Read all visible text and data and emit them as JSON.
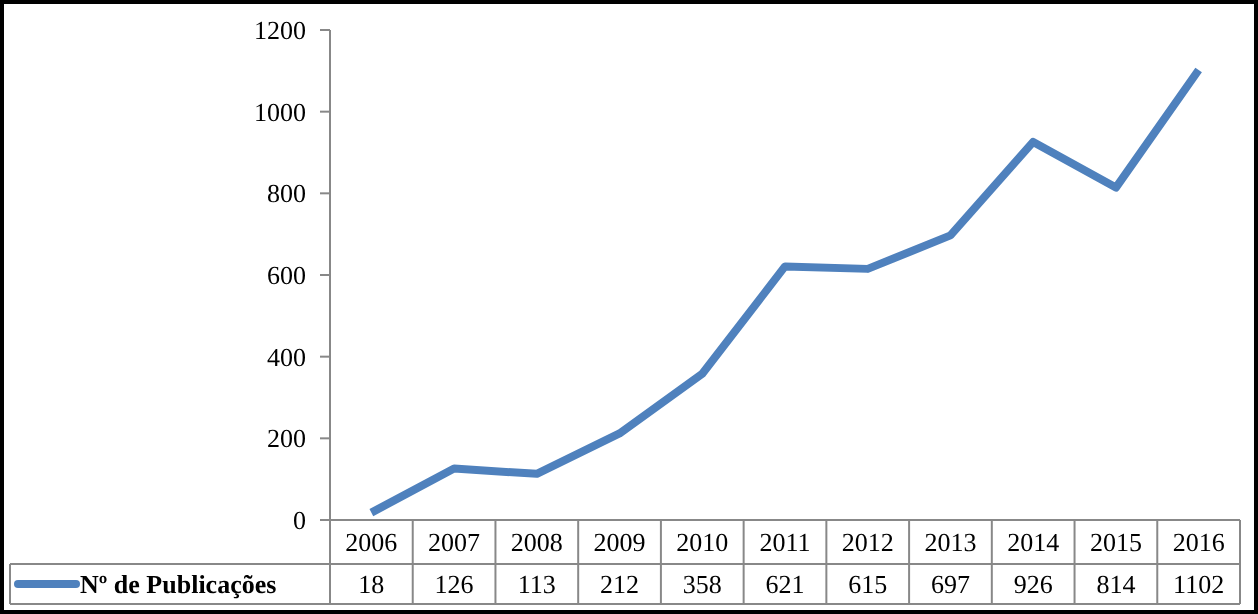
{
  "chart_data": {
    "type": "line",
    "categories": [
      "2006",
      "2007",
      "2008",
      "2009",
      "2010",
      "2011",
      "2012",
      "2013",
      "2014",
      "2015",
      "2016"
    ],
    "series": [
      {
        "name": "Nº de Publicações",
        "color": "#4f81bd",
        "values": [
          18,
          126,
          113,
          212,
          358,
          621,
          615,
          697,
          926,
          814,
          1102
        ]
      }
    ],
    "ylim": [
      0,
      1200
    ],
    "yticks": [
      0,
      200,
      400,
      600,
      800,
      1000,
      1200
    ],
    "data_labels": true,
    "legend": "bottom",
    "grid": false,
    "marker": "none",
    "line_style": "solid"
  }
}
